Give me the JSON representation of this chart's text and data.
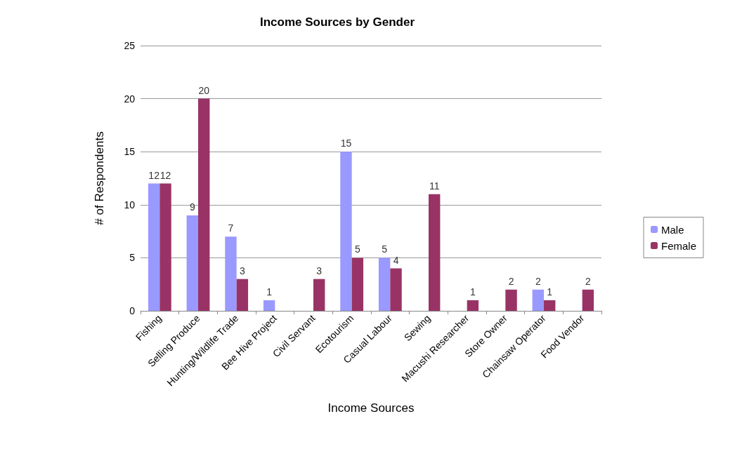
{
  "chart_data": {
    "type": "bar",
    "title": "Income Sources by Gender",
    "xlabel": "Income Sources",
    "ylabel": "# of Respondents",
    "categories": [
      "Fishing",
      "Selling Produce",
      "Hunting/Wildlife Trade",
      "Bee Hive Project",
      "Civil Servant",
      "Ecotourism",
      "Casual Labour",
      "Sewing",
      "Macushi Researcher",
      "Store Owner",
      "Chainsaw Operator",
      "Food Vendor"
    ],
    "series": [
      {
        "name": "Male",
        "color": "#9999ff",
        "values": [
          12,
          9,
          7,
          1,
          0,
          15,
          5,
          0,
          0,
          0,
          2,
          0
        ],
        "value_labels": [
          "12",
          "9",
          "7",
          "1",
          null,
          "15",
          "5",
          null,
          null,
          null,
          "2",
          null
        ]
      },
      {
        "name": "Female",
        "color": "#993366",
        "values": [
          12,
          20,
          3,
          0,
          3,
          5,
          4,
          11,
          1,
          2,
          1,
          2
        ],
        "value_labels": [
          "12",
          "20",
          "3",
          null,
          "3",
          "5",
          "4",
          "11",
          "1",
          "2",
          "1",
          "2"
        ]
      }
    ],
    "ylim": [
      0,
      25
    ],
    "yticks": [
      0,
      5,
      10,
      15,
      20,
      25
    ],
    "grid": "y",
    "legend": "right"
  }
}
